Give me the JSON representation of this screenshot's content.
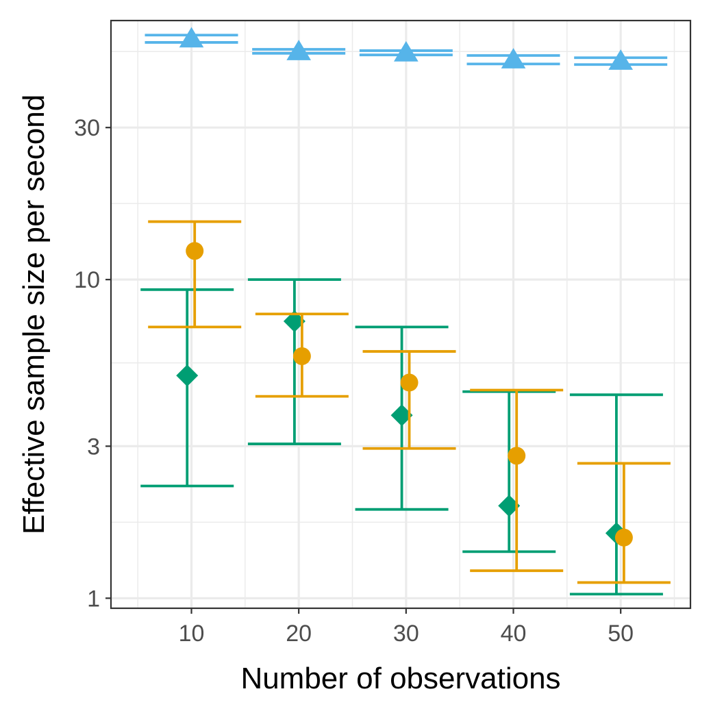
{
  "chart_data": {
    "type": "scatter",
    "xlabel": "Number of observations",
    "ylabel": "Effective sample size per second",
    "x_ticks": [
      10,
      20,
      30,
      40,
      50
    ],
    "y_ticks": [
      1,
      3,
      10,
      30
    ],
    "x_tick_labels": [
      "10",
      "20",
      "30",
      "40",
      "50"
    ],
    "y_tick_labels": [
      "1",
      "3",
      "10",
      "30"
    ],
    "y_scale": "log10",
    "xlim": [
      2.5,
      56.5
    ],
    "ylim": [
      0.93,
      65
    ],
    "grid": true,
    "legend": "none",
    "series": [
      {
        "name": "triangle",
        "marker": "triangle",
        "color": "#56B4E9",
        "offset": 0,
        "points": [
          {
            "x": 10,
            "y": 57,
            "low": 55.5,
            "high": 58.5
          },
          {
            "x": 20,
            "y": 52,
            "low": 51.3,
            "high": 52.8
          },
          {
            "x": 30,
            "y": 51.5,
            "low": 50.7,
            "high": 52.3
          },
          {
            "x": 40,
            "y": 49,
            "low": 47.5,
            "high": 50.5
          },
          {
            "x": 50,
            "y": 48.5,
            "low": 47.3,
            "high": 49.7
          }
        ]
      },
      {
        "name": "diamond",
        "marker": "diamond",
        "color": "#009E73",
        "offset": -0.4,
        "points": [
          {
            "x": 10,
            "y": 5.0,
            "low": 2.25,
            "high": 9.3
          },
          {
            "x": 20,
            "y": 7.4,
            "low": 3.05,
            "high": 10.0
          },
          {
            "x": 30,
            "y": 3.75,
            "low": 1.9,
            "high": 7.1
          },
          {
            "x": 40,
            "y": 1.95,
            "low": 1.4,
            "high": 4.45
          },
          {
            "x": 50,
            "y": 1.6,
            "low": 1.03,
            "high": 4.35
          }
        ]
      },
      {
        "name": "circle",
        "marker": "circle",
        "color": "#E69F00",
        "offset": 0.3,
        "points": [
          {
            "x": 10,
            "y": 12.3,
            "low": 7.1,
            "high": 15.2
          },
          {
            "x": 20,
            "y": 5.75,
            "low": 4.3,
            "high": 7.8
          },
          {
            "x": 30,
            "y": 4.75,
            "low": 2.95,
            "high": 5.95
          },
          {
            "x": 40,
            "y": 2.8,
            "low": 1.22,
            "high": 4.5
          },
          {
            "x": 50,
            "y": 1.55,
            "low": 1.12,
            "high": 2.65
          }
        ]
      }
    ]
  }
}
